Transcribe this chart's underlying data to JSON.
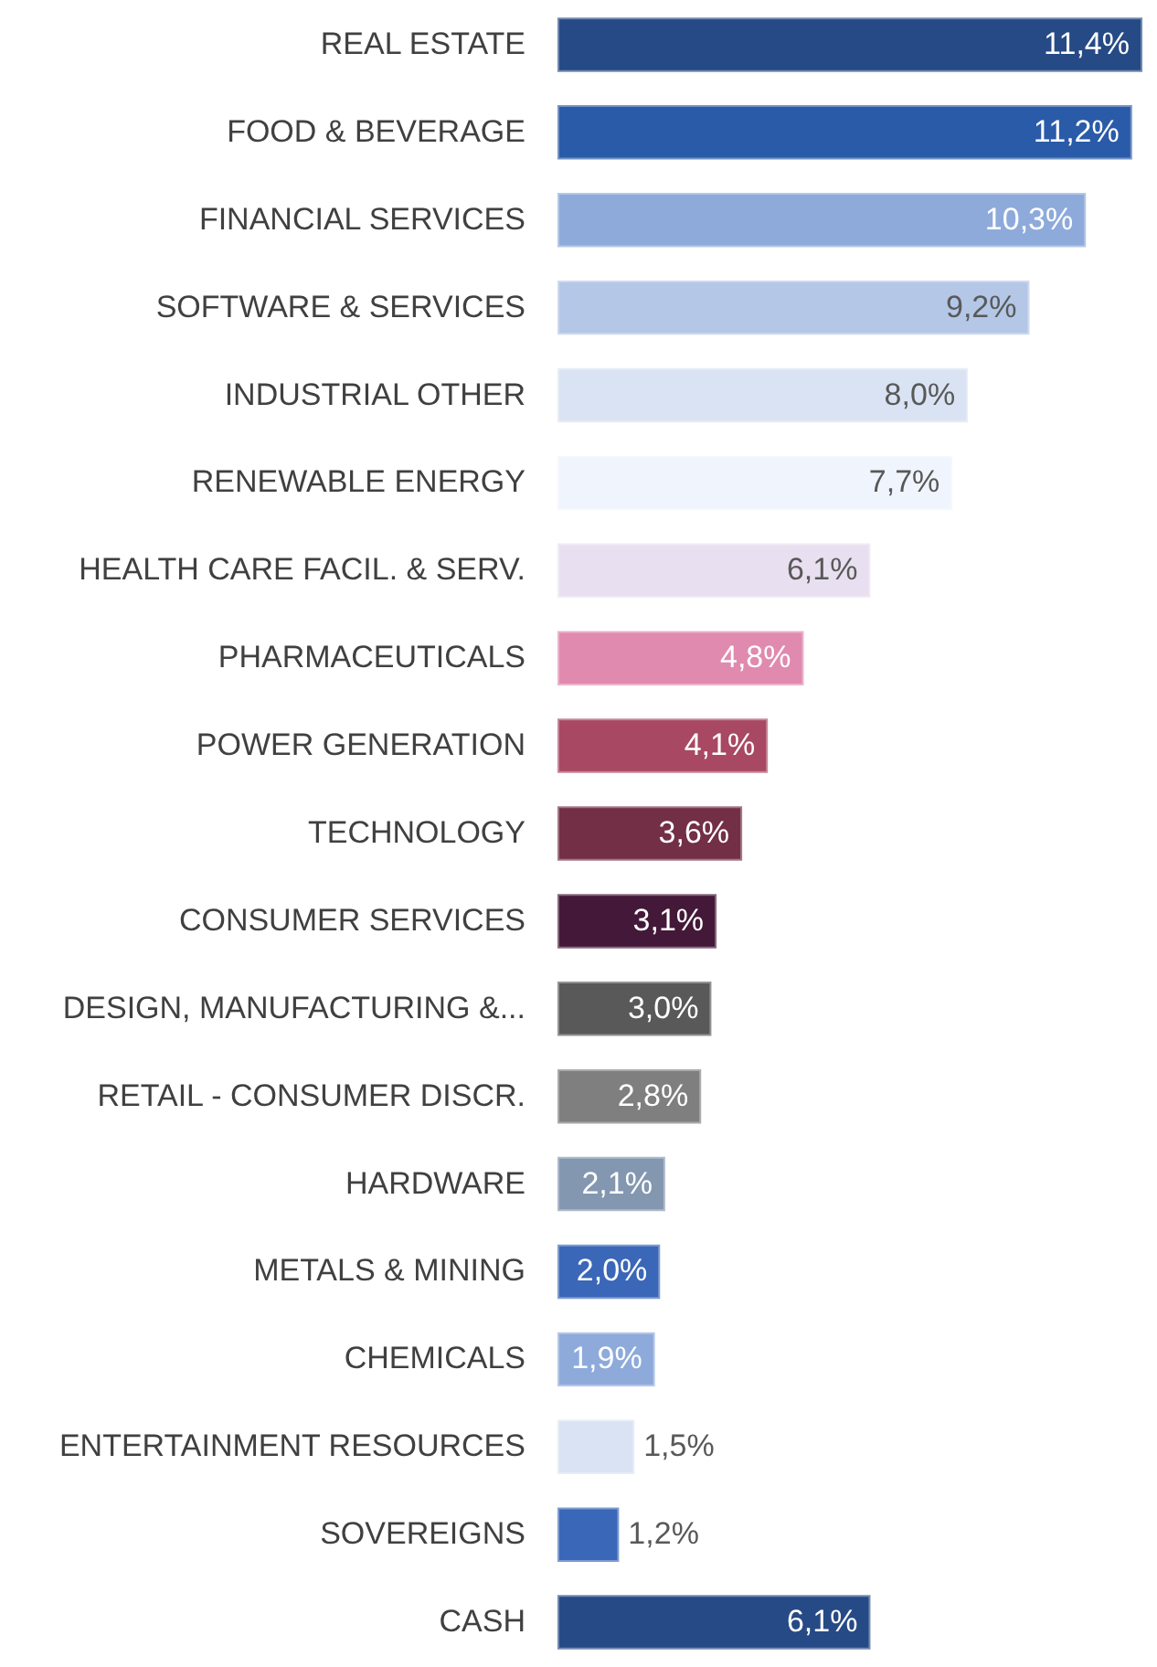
{
  "chart_data": {
    "type": "bar",
    "orientation": "horizontal",
    "categories": [
      "REAL ESTATE",
      "FOOD & BEVERAGE",
      "FINANCIAL SERVICES",
      "SOFTWARE & SERVICES",
      "INDUSTRIAL OTHER",
      "RENEWABLE ENERGY",
      "HEALTH CARE FACIL. & SERV.",
      "PHARMACEUTICALS",
      "POWER GENERATION",
      "TECHNOLOGY",
      "CONSUMER SERVICES",
      "DESIGN, MANUFACTURING &...",
      "RETAIL - CONSUMER DISCR.",
      "HARDWARE",
      "METALS & MINING",
      "CHEMICALS",
      "ENTERTAINMENT RESOURCES",
      "SOVEREIGNS",
      "CASH"
    ],
    "values": [
      11.4,
      11.2,
      10.3,
      9.2,
      8.0,
      7.7,
      6.1,
      4.8,
      4.1,
      3.6,
      3.1,
      3.0,
      2.8,
      2.1,
      2.0,
      1.9,
      1.5,
      1.2,
      6.1
    ],
    "value_labels": [
      "11,4%",
      "11,2%",
      "10,3%",
      "9,2%",
      "8,0%",
      "7,7%",
      "6,1%",
      "4,8%",
      "4,1%",
      "3,6%",
      "3,1%",
      "3,0%",
      "2,8%",
      "2,1%",
      "2,0%",
      "1,9%",
      "1,5%",
      "1,2%",
      "6,1%"
    ],
    "colors": [
      "#264a85",
      "#2a5ba8",
      "#8eaadb",
      "#b4c7e7",
      "#dae3f3",
      "#f0f5fd",
      "#e8e0f0",
      "#e08aaf",
      "#a84862",
      "#722f45",
      "#431838",
      "#595959",
      "#7f7f7f",
      "#8497b0",
      "#3a67b8",
      "#8eaadb",
      "#dae3f3",
      "#3a67b8",
      "#264a85"
    ]
  }
}
